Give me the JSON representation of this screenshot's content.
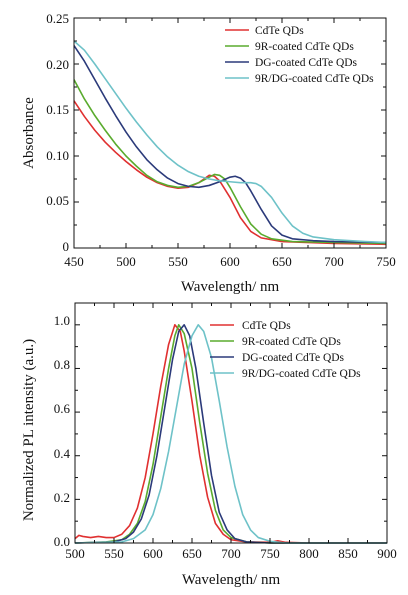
{
  "chart_data": [
    {
      "type": "line",
      "title": "",
      "xlabel": "Wavelength/ nm",
      "ylabel": "Absorbance",
      "xlim": [
        450,
        750
      ],
      "ylim": [
        0,
        0.25
      ],
      "x_ticks": [
        "450",
        "500",
        "550",
        "600",
        "650",
        "700",
        "750"
      ],
      "y_ticks": [
        "0",
        "0.05",
        "0.10",
        "0.15",
        "0.20",
        "0.25"
      ],
      "grid": false,
      "legend_position": "top-right",
      "series": [
        {
          "name": "CdTe QDs",
          "color": "#e03030",
          "points": [
            [
              450,
              0.16
            ],
            [
              460,
              0.143
            ],
            [
              470,
              0.128
            ],
            [
              480,
              0.115
            ],
            [
              490,
              0.104
            ],
            [
              500,
              0.094
            ],
            [
              510,
              0.085
            ],
            [
              520,
              0.077
            ],
            [
              530,
              0.071
            ],
            [
              540,
              0.067
            ],
            [
              550,
              0.065
            ],
            [
              560,
              0.066
            ],
            [
              570,
              0.071
            ],
            [
              575,
              0.075
            ],
            [
              580,
              0.079
            ],
            [
              585,
              0.078
            ],
            [
              590,
              0.073
            ],
            [
              600,
              0.055
            ],
            [
              610,
              0.033
            ],
            [
              620,
              0.018
            ],
            [
              630,
              0.011
            ],
            [
              650,
              0.007
            ],
            [
              700,
              0.005
            ],
            [
              750,
              0.004
            ]
          ]
        },
        {
          "name": "9R-coated CdTe QDs",
          "color": "#5aab2e",
          "points": [
            [
              450,
              0.183
            ],
            [
              460,
              0.162
            ],
            [
              470,
              0.144
            ],
            [
              480,
              0.128
            ],
            [
              490,
              0.113
            ],
            [
              500,
              0.1
            ],
            [
              510,
              0.089
            ],
            [
              520,
              0.079
            ],
            [
              530,
              0.072
            ],
            [
              540,
              0.068
            ],
            [
              550,
              0.066
            ],
            [
              560,
              0.067
            ],
            [
              570,
              0.071
            ],
            [
              580,
              0.077
            ],
            [
              585,
              0.08
            ],
            [
              590,
              0.079
            ],
            [
              595,
              0.075
            ],
            [
              600,
              0.066
            ],
            [
              610,
              0.045
            ],
            [
              620,
              0.026
            ],
            [
              630,
              0.015
            ],
            [
              640,
              0.01
            ],
            [
              660,
              0.007
            ],
            [
              700,
              0.006
            ],
            [
              750,
              0.005
            ]
          ]
        },
        {
          "name": "DG-coated CdTe QDs",
          "color": "#2b3a7a",
          "points": [
            [
              450,
              0.22
            ],
            [
              460,
              0.203
            ],
            [
              470,
              0.183
            ],
            [
              480,
              0.163
            ],
            [
              490,
              0.144
            ],
            [
              500,
              0.126
            ],
            [
              510,
              0.11
            ],
            [
              520,
              0.096
            ],
            [
              530,
              0.085
            ],
            [
              540,
              0.076
            ],
            [
              550,
              0.07
            ],
            [
              560,
              0.067
            ],
            [
              570,
              0.066
            ],
            [
              580,
              0.068
            ],
            [
              590,
              0.072
            ],
            [
              600,
              0.077
            ],
            [
              605,
              0.078
            ],
            [
              610,
              0.076
            ],
            [
              615,
              0.071
            ],
            [
              620,
              0.062
            ],
            [
              630,
              0.042
            ],
            [
              640,
              0.024
            ],
            [
              650,
              0.014
            ],
            [
              660,
              0.01
            ],
            [
              680,
              0.008
            ],
            [
              700,
              0.007
            ],
            [
              750,
              0.006
            ]
          ]
        },
        {
          "name": "9R/DG-coated CdTe QDs",
          "color": "#6ec2c8",
          "points": [
            [
              450,
              0.225
            ],
            [
              460,
              0.215
            ],
            [
              470,
              0.2
            ],
            [
              480,
              0.184
            ],
            [
              490,
              0.168
            ],
            [
              500,
              0.152
            ],
            [
              510,
              0.137
            ],
            [
              520,
              0.123
            ],
            [
              530,
              0.11
            ],
            [
              540,
              0.099
            ],
            [
              550,
              0.09
            ],
            [
              560,
              0.083
            ],
            [
              570,
              0.078
            ],
            [
              580,
              0.075
            ],
            [
              590,
              0.073
            ],
            [
              600,
              0.072
            ],
            [
              610,
              0.071
            ],
            [
              620,
              0.071
            ],
            [
              625,
              0.07
            ],
            [
              630,
              0.067
            ],
            [
              640,
              0.055
            ],
            [
              650,
              0.038
            ],
            [
              660,
              0.024
            ],
            [
              670,
              0.016
            ],
            [
              680,
              0.012
            ],
            [
              700,
              0.009
            ],
            [
              730,
              0.007
            ],
            [
              750,
              0.006
            ]
          ]
        }
      ]
    },
    {
      "type": "line",
      "title": "",
      "xlabel": "Wavelength/ nm",
      "ylabel": "Normalized PL intensity (a.u.)",
      "xlim": [
        500,
        900
      ],
      "ylim": [
        0,
        1.1
      ],
      "x_ticks": [
        "500",
        "550",
        "600",
        "650",
        "700",
        "750",
        "800",
        "850",
        "900"
      ],
      "y_ticks": [
        "0.0",
        "0.2",
        "0.4",
        "0.6",
        "0.8",
        "1.0"
      ],
      "grid": false,
      "legend_position": "top-right",
      "series": [
        {
          "name": "CdTe QDs",
          "color": "#e03030",
          "points": [
            [
              500,
              0.02
            ],
            [
              505,
              0.035
            ],
            [
              510,
              0.03
            ],
            [
              520,
              0.025
            ],
            [
              530,
              0.03
            ],
            [
              540,
              0.025
            ],
            [
              550,
              0.025
            ],
            [
              560,
              0.04
            ],
            [
              570,
              0.08
            ],
            [
              580,
              0.16
            ],
            [
              590,
              0.3
            ],
            [
              600,
              0.5
            ],
            [
              610,
              0.72
            ],
            [
              620,
              0.91
            ],
            [
              628,
              1.0
            ],
            [
              635,
              0.97
            ],
            [
              640,
              0.88
            ],
            [
              650,
              0.65
            ],
            [
              660,
              0.4
            ],
            [
              670,
              0.21
            ],
            [
              680,
              0.09
            ],
            [
              690,
              0.04
            ],
            [
              700,
              0.015
            ],
            [
              720,
              0.005
            ],
            [
              750,
              0.003
            ],
            [
              760,
              0.01
            ],
            [
              770,
              0.003
            ],
            [
              800,
              0.0
            ],
            [
              900,
              0.0
            ]
          ]
        },
        {
          "name": "9R-coated CdTe QDs",
          "color": "#5aab2e",
          "points": [
            [
              500,
              0.0
            ],
            [
              540,
              0.005
            ],
            [
              560,
              0.015
            ],
            [
              570,
              0.04
            ],
            [
              580,
              0.09
            ],
            [
              590,
              0.19
            ],
            [
              600,
              0.36
            ],
            [
              610,
              0.58
            ],
            [
              620,
              0.8
            ],
            [
              628,
              0.95
            ],
            [
              633,
              1.0
            ],
            [
              640,
              0.96
            ],
            [
              650,
              0.8
            ],
            [
              660,
              0.55
            ],
            [
              670,
              0.32
            ],
            [
              680,
              0.15
            ],
            [
              690,
              0.06
            ],
            [
              700,
              0.025
            ],
            [
              720,
              0.005
            ],
            [
              750,
              0.0
            ],
            [
              900,
              0.0
            ]
          ]
        },
        {
          "name": "DG-coated CdTe QDs",
          "color": "#2b3a7a",
          "points": [
            [
              500,
              0.0
            ],
            [
              550,
              0.005
            ],
            [
              565,
              0.02
            ],
            [
              575,
              0.05
            ],
            [
              585,
              0.11
            ],
            [
              595,
              0.22
            ],
            [
              605,
              0.4
            ],
            [
              615,
              0.62
            ],
            [
              625,
              0.84
            ],
            [
              633,
              0.97
            ],
            [
              640,
              1.0
            ],
            [
              647,
              0.95
            ],
            [
              655,
              0.8
            ],
            [
              665,
              0.55
            ],
            [
              675,
              0.31
            ],
            [
              685,
              0.14
            ],
            [
              695,
              0.06
            ],
            [
              705,
              0.02
            ],
            [
              720,
              0.005
            ],
            [
              750,
              0.0
            ],
            [
              900,
              0.0
            ]
          ]
        },
        {
          "name": "9R/DG-coated CdTe QDs",
          "color": "#6ec2c8",
          "points": [
            [
              500,
              0.0
            ],
            [
              560,
              0.005
            ],
            [
              575,
              0.02
            ],
            [
              590,
              0.06
            ],
            [
              600,
              0.13
            ],
            [
              610,
              0.25
            ],
            [
              620,
              0.42
            ],
            [
              630,
              0.62
            ],
            [
              640,
              0.82
            ],
            [
              650,
              0.95
            ],
            [
              658,
              1.0
            ],
            [
              665,
              0.97
            ],
            [
              675,
              0.85
            ],
            [
              685,
              0.65
            ],
            [
              695,
              0.44
            ],
            [
              705,
              0.26
            ],
            [
              715,
              0.13
            ],
            [
              725,
              0.06
            ],
            [
              735,
              0.025
            ],
            [
              750,
              0.008
            ],
            [
              770,
              0.0
            ],
            [
              900,
              0.0
            ]
          ]
        }
      ]
    }
  ]
}
